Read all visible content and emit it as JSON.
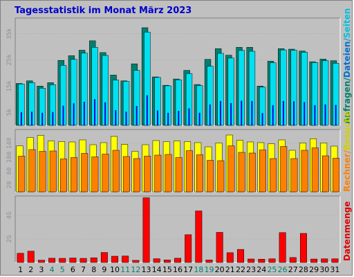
{
  "chart_data": {
    "title": "Tagesstatistik im Monat März 2023",
    "days": [
      "1",
      "2",
      "3",
      "4",
      "5",
      "6",
      "7",
      "8",
      "9",
      "10",
      "11",
      "12",
      "13",
      "14",
      "15",
      "16",
      "17",
      "18",
      "19",
      "20",
      "21",
      "22",
      "23",
      "24",
      "25",
      "26",
      "27",
      "28",
      "29",
      "30",
      "31"
    ],
    "weekend_days": [
      "4",
      "5",
      "11",
      "12",
      "18",
      "19",
      "25",
      "26"
    ],
    "panels": [
      {
        "type": "bar",
        "ytick_labels": [
          "5k",
          "15k",
          "25k",
          "35k"
        ],
        "ylim": [
          0,
          41000
        ],
        "series": [
          {
            "name": "Anfragen",
            "color": "#00806f",
            "values": [
              16000,
              17000,
              15000,
              16300,
              24800,
              26600,
              28700,
              32300,
              27800,
              19200,
              17000,
              23500,
              37300,
              18500,
              15300,
              17700,
              21000,
              15600,
              25200,
              29300,
              26800,
              29800,
              29800,
              15000,
              24500,
              29300,
              29100,
              28400,
              24300,
              25300,
              24700
            ]
          },
          {
            "name": "Dateien",
            "color": "#00e0f0",
            "values": [
              15800,
              16300,
              14200,
              15500,
              22900,
              25200,
              27600,
              29800,
              26700,
              17300,
              16800,
              21000,
              35600,
              18300,
              15100,
              17400,
              19800,
              15200,
              22600,
              27500,
              25700,
              28600,
              28300,
              14600,
              23900,
              28800,
              28700,
              27900,
              24000,
              24700,
              23700
            ]
          },
          {
            "name": "Seiten",
            "color": "#0000dd",
            "values": [
              5000,
              5200,
              4800,
              5100,
              7500,
              8400,
              9000,
              10000,
              8800,
              5800,
              5200,
              7400,
              11500,
              5700,
              4800,
              5500,
              6500,
              4800,
              8000,
              9300,
              8500,
              9400,
              9300,
              4700,
              7700,
              9300,
              9200,
              8900,
              7700,
              8000,
              7800
            ]
          }
        ]
      },
      {
        "type": "bar",
        "ytick_labels": [
          "20",
          "60",
          "100",
          "140"
        ],
        "ylim": [
          0,
          180
        ],
        "series": [
          {
            "name": "Besuche",
            "color": "#ffff00",
            "values": [
              133,
              157,
              163,
              147,
              145,
              144,
              150,
              136,
              142,
              160,
              137,
              117,
              136,
              148,
              145,
              147,
              145,
              142,
              130,
              141,
              164,
              149,
              144,
              142,
              139,
              150,
              120,
              141,
              153,
              141,
              132
            ]
          },
          {
            "name": "Rechner",
            "color": "#ff8000",
            "values": [
              103,
              122,
              117,
              118,
              95,
              99,
              111,
              101,
              109,
              120,
              102,
              96,
              103,
              106,
              108,
              99,
              119,
              107,
              91,
              90,
              133,
              114,
              112,
              121,
              96,
              131,
              96,
              120,
              127,
              104,
              97
            ]
          }
        ]
      },
      {
        "type": "bar",
        "ytick_labels": [
          "2G",
          "4G"
        ],
        "ylim": [
          0,
          5650
        ],
        "series": [
          {
            "name": "Datenmenge",
            "color": "#ff0000",
            "values": [
              780,
              960,
              195,
              360,
              350,
              380,
              350,
              400,
              850,
              530,
              550,
              180,
              5500,
              320,
              210,
              360,
              2360,
              4380,
              210,
              2560,
              830,
              1110,
              295,
              280,
              310,
              2540,
              420,
              2470,
              290,
              310,
              310
            ]
          }
        ]
      }
    ],
    "side_labels": [
      [
        {
          "text": "Anfragen",
          "color": "#00806f"
        },
        {
          "text": "/",
          "color": "#00806f"
        },
        {
          "text": "Dateien",
          "color": "#0070d0"
        },
        {
          "text": "/",
          "color": "#00a0d0"
        },
        {
          "text": "Seiten",
          "color": "#00c0e0"
        }
      ],
      [
        {
          "text": "Rechner",
          "color": "#ff8000"
        },
        {
          "text": "/",
          "color": "#ff8000"
        },
        {
          "text": "Besuche",
          "color": "#d0d000"
        }
      ],
      [
        {
          "text": "Datenmenge",
          "color": "#dd0000"
        }
      ]
    ],
    "colors": {
      "weekday": "#000000",
      "weekend": "#00806f",
      "panel_bg": "#c0c0c0",
      "grid": "#a0a0a0"
    }
  }
}
